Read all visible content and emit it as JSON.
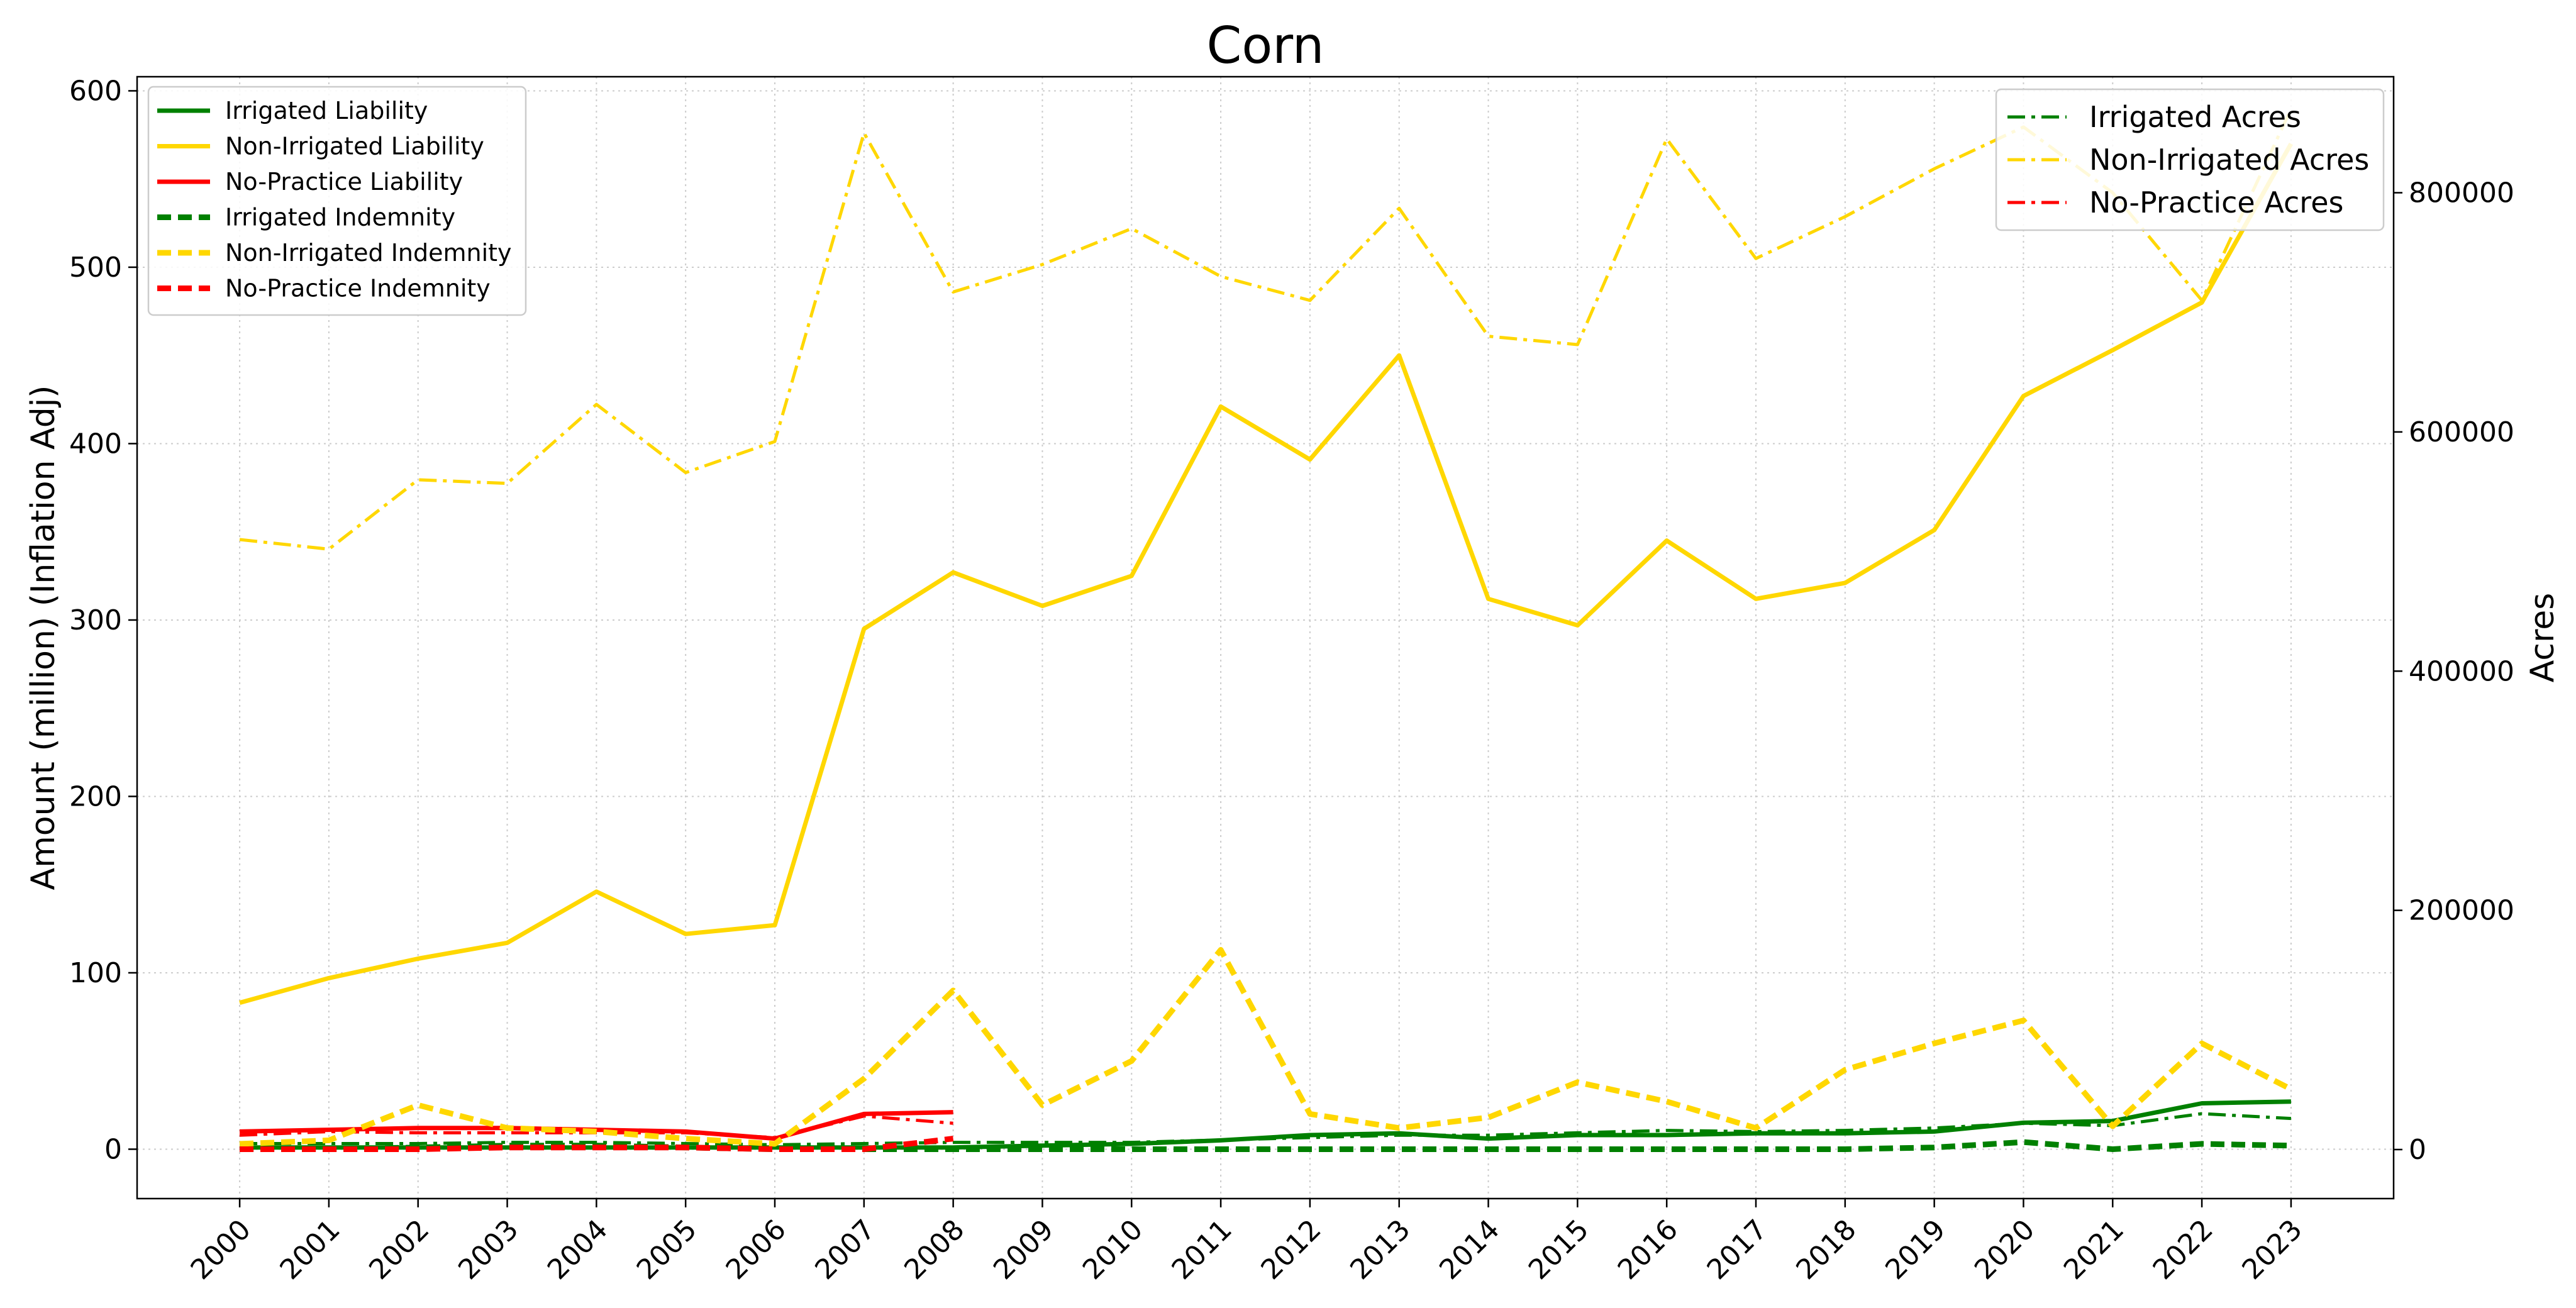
{
  "chart_data": {
    "type": "line",
    "title": "Corn",
    "ylabel": "Amount (million) (Inflation Adj)",
    "y2label": "Acres",
    "ylim": [
      -28,
      608
    ],
    "y2lim": [
      -41000,
      897000
    ],
    "yticks": [
      0,
      100,
      200,
      300,
      400,
      500,
      600
    ],
    "y2ticks": [
      0,
      200000,
      400000,
      600000,
      800000
    ],
    "x": [
      2000,
      2001,
      2002,
      2003,
      2004,
      2005,
      2006,
      2007,
      2008,
      2009,
      2010,
      2011,
      2012,
      2013,
      2014,
      2015,
      2016,
      2017,
      2018,
      2019,
      2020,
      2021,
      2022,
      2023
    ],
    "xlim": [
      1998.85,
      2024.15
    ],
    "grid": true,
    "colors": {
      "irrigated": "#008000",
      "non_irrigated": "#FFD700",
      "no_practice": "#FF0000"
    },
    "left_legend_placement": "upper-left",
    "right_legend_placement": "upper-right",
    "series": [
      {
        "name": "Irrigated Liability",
        "axis": "left",
        "style": "solid",
        "color": "#008000",
        "values": [
          1,
          1,
          1,
          1,
          1,
          1,
          1,
          1,
          1,
          2,
          3,
          5,
          8,
          9,
          6,
          8,
          8,
          9,
          9,
          10,
          15,
          16,
          26,
          27
        ]
      },
      {
        "name": "Non-Irrigated Liability",
        "axis": "left",
        "style": "solid",
        "color": "#FFD700",
        "values": [
          83,
          97,
          108,
          117,
          146,
          122,
          127,
          295,
          327,
          308,
          325,
          421,
          391,
          450,
          312,
          297,
          345,
          312,
          321,
          351,
          427,
          453,
          480,
          570
        ]
      },
      {
        "name": "No-Practice Liability",
        "axis": "left",
        "style": "solid",
        "color": "#FF0000",
        "values": [
          10,
          11,
          12,
          12,
          11,
          10,
          6,
          20,
          21,
          null,
          null,
          null,
          null,
          null,
          null,
          null,
          null,
          null,
          null,
          null,
          null,
          null,
          null,
          null
        ]
      },
      {
        "name": "Irrigated Indemnity",
        "axis": "left",
        "style": "dashed",
        "color": "#008000",
        "values": [
          0,
          0,
          1,
          2,
          2,
          1,
          0,
          0,
          0,
          0,
          0,
          0,
          0,
          0,
          0,
          0,
          0,
          0,
          0,
          1,
          4,
          0,
          3,
          2
        ]
      },
      {
        "name": "Non-Irrigated Indemnity",
        "axis": "left",
        "style": "dashed",
        "color": "#FFD700",
        "values": [
          3,
          5,
          25,
          12,
          10,
          6,
          3,
          40,
          90,
          25,
          50,
          113,
          20,
          12,
          18,
          38,
          27,
          12,
          45,
          60,
          73,
          13,
          60,
          34
        ]
      },
      {
        "name": "No-Practice Indemnity",
        "axis": "left",
        "style": "dashed",
        "color": "#FF0000",
        "values": [
          0,
          0,
          0,
          1,
          1,
          1,
          0,
          0,
          6,
          null,
          null,
          null,
          null,
          null,
          null,
          null,
          null,
          null,
          null,
          null,
          null,
          null,
          null,
          null
        ]
      },
      {
        "name": "Irrigated Acres",
        "axis": "right",
        "style": "dashdot",
        "color": "#008000",
        "values": [
          5000,
          5000,
          5000,
          6000,
          6000,
          5000,
          4000,
          5000,
          6000,
          6000,
          6000,
          8000,
          10000,
          12000,
          12000,
          14000,
          16000,
          15000,
          16000,
          18000,
          22000,
          20000,
          30000,
          26000
        ]
      },
      {
        "name": "Non-Irrigated Acres",
        "axis": "right",
        "style": "dashdot",
        "color": "#FFD700",
        "values": [
          510000,
          502000,
          560000,
          557000,
          623000,
          566000,
          592000,
          850000,
          717000,
          740000,
          770000,
          730000,
          710000,
          787000,
          680000,
          673000,
          845000,
          745000,
          780000,
          820000,
          855000,
          800000,
          710000,
          870000
        ]
      },
      {
        "name": "No-Practice Acres",
        "axis": "right",
        "style": "dashdot",
        "color": "#FF0000",
        "values": [
          12000,
          15000,
          14000,
          14000,
          14000,
          14000,
          10000,
          28000,
          22000,
          null,
          null,
          null,
          null,
          null,
          null,
          null,
          null,
          null,
          null,
          null,
          null,
          null,
          null,
          null
        ]
      }
    ]
  }
}
